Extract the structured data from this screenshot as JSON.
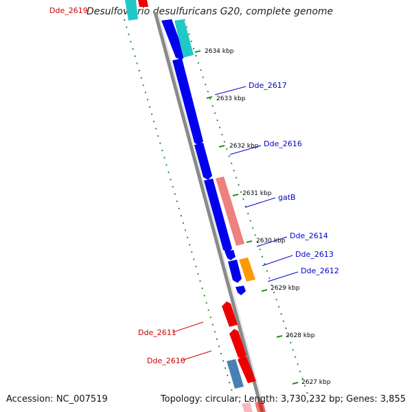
{
  "title": "Desulfovibrio desulfuricans G20, complete genome",
  "footer": {
    "accession": "Accession: NC_007519",
    "summary": "Topology: circular; Length: 3,730,232 bp; Genes: 3,855"
  },
  "ticks": [
    "2634 kbp",
    "2633 kbp",
    "2632 kbp",
    "2631 kbp",
    "2630 kbp",
    "2629 kbp",
    "2628 kbp",
    "2627 kbp"
  ],
  "gene_labels": {
    "dde_2619": "Dde_2619",
    "dde_2617": "Dde_2617",
    "dde_2616": "Dde_2616",
    "gatb": "gatB",
    "dde_2614": "Dde_2614",
    "dde_2613": "Dde_2613",
    "dde_2612": "Dde_2612",
    "dde_2611": "Dde_2611",
    "dde_2610": "Dde_2610"
  },
  "colors": {
    "forward_cds": "#0000ee",
    "reverse_cds": "#ee0000",
    "rna_cyan": "#20c8c8",
    "rna_salmon": "#ee8080",
    "orange": "#ff9900",
    "steelblue": "#4a7fb5",
    "backbone": "#888888",
    "tick_green": "#2a8a2a",
    "forward_label": "#0000cc",
    "reverse_label": "#cc0000"
  }
}
